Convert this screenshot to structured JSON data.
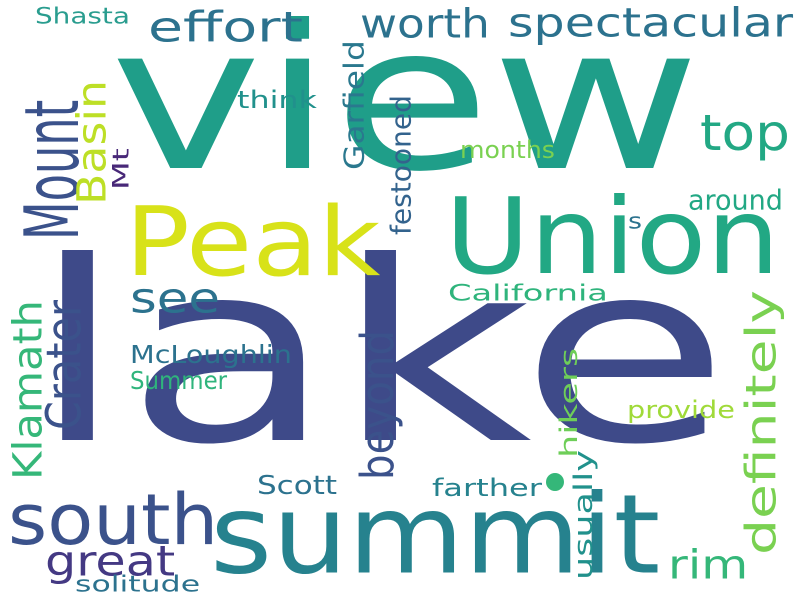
{
  "words": [
    {
      "text": "lake",
      "color": "#3e4a89"
    },
    {
      "text": "view",
      "color": "#1f9e89"
    },
    {
      "text": "summit",
      "color": "#26828e"
    },
    {
      "text": "Peak",
      "color": "#d8e219"
    },
    {
      "text": "Union",
      "color": "#22a884"
    },
    {
      "text": "south",
      "color": "#3b528b"
    },
    {
      "text": "Mount",
      "color": "#3b528b"
    },
    {
      "text": "effort",
      "color": "#2c728e"
    },
    {
      "text": "worth",
      "color": "#2c728e"
    },
    {
      "text": "spectacular",
      "color": "#2c728e"
    },
    {
      "text": "top",
      "color": "#22a884"
    },
    {
      "text": "see",
      "color": "#2c728e"
    },
    {
      "text": "great",
      "color": "#443983"
    },
    {
      "text": "rim",
      "color": "#35b779"
    },
    {
      "text": "beyond",
      "color": "#3b528b"
    },
    {
      "text": "definitely",
      "color": "#7ad151"
    },
    {
      "text": "Crater",
      "color": "#3b528b"
    },
    {
      "text": "Klamath",
      "color": "#35b779"
    },
    {
      "text": "Basin",
      "color": "#bddf26"
    },
    {
      "text": "Shasta",
      "color": "#2a9d8f"
    },
    {
      "text": "think",
      "color": "#21918c"
    },
    {
      "text": "Garfield",
      "color": "#2a788e"
    },
    {
      "text": "festooned",
      "color": "#33638d"
    },
    {
      "text": "months",
      "color": "#7ad151"
    },
    {
      "text": "Mt",
      "color": "#482878"
    },
    {
      "text": "around",
      "color": "#22a884"
    },
    {
      "text": "s",
      "color": "#2c728e"
    },
    {
      "text": "California",
      "color": "#2fb47c"
    },
    {
      "text": "McLoughlin",
      "color": "#2c728e"
    },
    {
      "text": "Summer",
      "color": "#2fb47c"
    },
    {
      "text": "hikers",
      "color": "#6ece58"
    },
    {
      "text": "provide",
      "color": "#a0da39"
    },
    {
      "text": "usually",
      "color": "#21918c"
    },
    {
      "text": "Scott",
      "color": "#2c728e"
    },
    {
      "text": "farther",
      "color": "#26828e"
    },
    {
      "text": "solitude",
      "color": "#2c728e"
    },
    {
      "text": "",
      "color": "#35b779"
    }
  ]
}
